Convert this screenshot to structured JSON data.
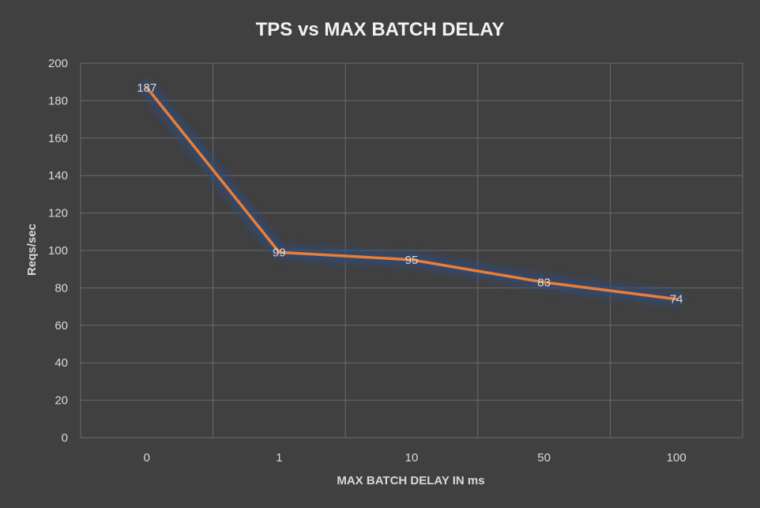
{
  "chart_data": {
    "type": "line",
    "title": "TPS vs MAX BATCH DELAY",
    "xlabel": "MAX BATCH DELAY IN ms",
    "ylabel": "Reqs/sec",
    "categories": [
      "0",
      "1",
      "10",
      "50",
      "100"
    ],
    "series": [
      {
        "values": [
          187,
          99,
          95,
          83,
          74
        ],
        "color": "#ed7d31"
      }
    ],
    "data_labels": [
      "187",
      "99",
      "95",
      "83",
      "74"
    ],
    "ylim": [
      0,
      200
    ],
    "yticks": [
      0,
      20,
      40,
      60,
      80,
      100,
      120,
      140,
      160,
      180,
      200
    ],
    "grid": true,
    "legend": "none",
    "colors": {
      "background": "#404040",
      "grid": "#6a6a6a",
      "text": "#d9d9d9",
      "line": "#ed7d31",
      "glow": "#2e4a7a"
    }
  }
}
